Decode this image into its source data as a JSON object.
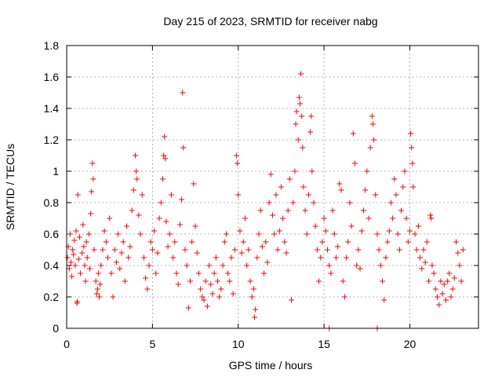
{
  "chart_data": {
    "type": "scatter",
    "title": "Day 215 of 2023, SRMTID for receiver nabg",
    "xlabel": "GPS time / hours",
    "ylabel": "SRMTID / TECUs",
    "xlim": [
      0,
      24
    ],
    "ylim": [
      0,
      1.8
    ],
    "x_ticks": [
      0,
      5,
      10,
      15,
      20
    ],
    "x_tick_labels": [
      "0",
      "5",
      "10",
      "15",
      "20"
    ],
    "y_ticks": [
      0,
      0.2,
      0.4,
      0.6,
      0.8,
      1,
      1.2,
      1.4,
      1.6,
      1.8
    ],
    "y_tick_labels": [
      "0",
      "0.2",
      "0.4",
      "0.6",
      "0.8",
      "1",
      "1.2",
      "1.4",
      "1.6",
      "1.8"
    ],
    "grid": true,
    "marker": "+",
    "series_color": "#ff0000",
    "series": [
      {
        "name": "SRMTID",
        "points": [
          [
            0.05,
            0.45
          ],
          [
            0.1,
            0.52
          ],
          [
            0.15,
            0.38
          ],
          [
            0.2,
            0.6
          ],
          [
            0.25,
            0.42
          ],
          [
            0.3,
            0.33
          ],
          [
            0.35,
            0.5
          ],
          [
            0.4,
            0.47
          ],
          [
            0.45,
            0.56
          ],
          [
            0.5,
            0.4
          ],
          [
            0.55,
            0.62
          ],
          [
            0.6,
            0.16
          ],
          [
            0.62,
            0.17
          ],
          [
            0.65,
            0.85
          ],
          [
            0.7,
            0.44
          ],
          [
            0.75,
            0.58
          ],
          [
            0.8,
            0.35
          ],
          [
            0.9,
            0.48
          ],
          [
            0.95,
            0.66
          ],
          [
            1.0,
            0.52
          ],
          [
            1.05,
            0.4
          ],
          [
            1.1,
            0.3
          ],
          [
            1.15,
            0.55
          ],
          [
            1.2,
            0.45
          ],
          [
            1.3,
            0.6
          ],
          [
            1.35,
            0.38
          ],
          [
            1.4,
            0.73
          ],
          [
            1.45,
            0.87
          ],
          [
            1.5,
            1.05
          ],
          [
            1.55,
            0.95
          ],
          [
            1.6,
            0.5
          ],
          [
            1.7,
            0.3
          ],
          [
            1.75,
            0.22
          ],
          [
            1.8,
            0.25
          ],
          [
            1.85,
            0.35
          ],
          [
            1.9,
            0.2
          ],
          [
            1.95,
            0.28
          ],
          [
            2.0,
            0.4
          ],
          [
            2.1,
            0.5
          ],
          [
            2.2,
            0.62
          ],
          [
            2.3,
            0.55
          ],
          [
            2.4,
            0.45
          ],
          [
            2.5,
            0.7
          ],
          [
            2.6,
            0.35
          ],
          [
            2.7,
            0.2
          ],
          [
            2.8,
            0.5
          ],
          [
            2.9,
            0.42
          ],
          [
            3.0,
            0.6
          ],
          [
            3.1,
            0.38
          ],
          [
            3.2,
            0.48
          ],
          [
            3.3,
            0.55
          ],
          [
            3.4,
            0.3
          ],
          [
            3.5,
            0.65
          ],
          [
            3.6,
            0.45
          ],
          [
            3.7,
            0.52
          ],
          [
            3.8,
            0.75
          ],
          [
            3.9,
            0.88
          ],
          [
            4.0,
            1.1
          ],
          [
            4.05,
            1.0
          ],
          [
            4.1,
            0.95
          ],
          [
            4.2,
            0.72
          ],
          [
            4.3,
            0.6
          ],
          [
            4.4,
            0.85
          ],
          [
            4.5,
            0.45
          ],
          [
            4.6,
            0.32
          ],
          [
            4.7,
            0.25
          ],
          [
            4.8,
            0.4
          ],
          [
            4.9,
            0.55
          ],
          [
            5.0,
            0.5
          ],
          [
            5.1,
            0.62
          ],
          [
            5.2,
            0.35
          ],
          [
            5.3,
            0.48
          ],
          [
            5.4,
            0.7
          ],
          [
            5.5,
            0.8
          ],
          [
            5.6,
            0.95
          ],
          [
            5.65,
            1.1
          ],
          [
            5.7,
            1.22
          ],
          [
            5.75,
            1.08
          ],
          [
            5.8,
            0.68
          ],
          [
            5.9,
            0.52
          ],
          [
            6.0,
            0.6
          ],
          [
            6.1,
            0.85
          ],
          [
            6.2,
            0.45
          ],
          [
            6.3,
            0.55
          ],
          [
            6.4,
            0.35
          ],
          [
            6.5,
            0.28
          ],
          [
            6.6,
            0.66
          ],
          [
            6.7,
            0.82
          ],
          [
            6.75,
            1.5
          ],
          [
            6.8,
            1.15
          ],
          [
            6.9,
            0.5
          ],
          [
            7.0,
            0.4
          ],
          [
            7.1,
            0.13
          ],
          [
            7.2,
            0.3
          ],
          [
            7.3,
            0.55
          ],
          [
            7.4,
            0.92
          ],
          [
            7.5,
            0.65
          ],
          [
            7.6,
            0.48
          ],
          [
            7.7,
            0.35
          ],
          [
            7.8,
            0.25
          ],
          [
            7.9,
            0.2
          ],
          [
            8.0,
            0.18
          ],
          [
            8.1,
            0.3
          ],
          [
            8.2,
            0.14
          ],
          [
            8.3,
            0.4
          ],
          [
            8.4,
            0.28
          ],
          [
            8.5,
            0.22
          ],
          [
            8.6,
            0.35
          ],
          [
            8.7,
            0.45
          ],
          [
            8.8,
            0.3
          ],
          [
            8.9,
            0.2
          ],
          [
            9.0,
            0.25
          ],
          [
            9.1,
            0.4
          ],
          [
            9.2,
            0.55
          ],
          [
            9.3,
            0.6
          ],
          [
            9.4,
            0.35
          ],
          [
            9.5,
            0.3
          ],
          [
            9.6,
            0.45
          ],
          [
            9.7,
            0.22
          ],
          [
            9.8,
            0.5
          ],
          [
            9.9,
            1.1
          ],
          [
            9.95,
            1.05
          ],
          [
            10.0,
            0.85
          ],
          [
            10.1,
            0.62
          ],
          [
            10.2,
            0.48
          ],
          [
            10.3,
            0.55
          ],
          [
            10.4,
            0.7
          ],
          [
            10.5,
            0.4
          ],
          [
            10.6,
            0.5
          ],
          [
            10.7,
            0.3
          ],
          [
            10.8,
            0.2
          ],
          [
            10.9,
            0.25
          ],
          [
            10.95,
            0.07
          ],
          [
            11.0,
            0.12
          ],
          [
            11.1,
            0.45
          ],
          [
            11.2,
            0.6
          ],
          [
            11.3,
            0.75
          ],
          [
            11.4,
            0.52
          ],
          [
            11.5,
            0.35
          ],
          [
            11.6,
            0.55
          ],
          [
            11.7,
            0.42
          ],
          [
            11.8,
            0.8
          ],
          [
            11.9,
            0.98
          ],
          [
            12.0,
            0.72
          ],
          [
            12.1,
            0.6
          ],
          [
            12.2,
            0.85
          ],
          [
            12.3,
            0.5
          ],
          [
            12.4,
            0.62
          ],
          [
            12.5,
            0.9
          ],
          [
            12.6,
            0.7
          ],
          [
            12.7,
            0.55
          ],
          [
            12.8,
            0.48
          ],
          [
            12.9,
            0.75
          ],
          [
            13.0,
            0.95
          ],
          [
            13.1,
            0.18
          ],
          [
            13.2,
            0.8
          ],
          [
            13.3,
            1.0
          ],
          [
            13.35,
            1.3
          ],
          [
            13.4,
            1.38
          ],
          [
            13.5,
            1.2
          ],
          [
            13.55,
            1.47
          ],
          [
            13.6,
            1.43
          ],
          [
            13.65,
            1.62
          ],
          [
            13.7,
            1.35
          ],
          [
            13.75,
            1.15
          ],
          [
            13.8,
            0.9
          ],
          [
            13.9,
            0.75
          ],
          [
            14.0,
            0.6
          ],
          [
            14.1,
            0.85
          ],
          [
            14.2,
            1.25
          ],
          [
            14.25,
            1.35
          ],
          [
            14.3,
            1.0
          ],
          [
            14.4,
            0.8
          ],
          [
            14.5,
            0.65
          ],
          [
            14.6,
            0.5
          ],
          [
            14.7,
            0.3
          ],
          [
            14.8,
            0.45
          ],
          [
            14.9,
            0.55
          ],
          [
            15.0,
            0.7
          ],
          [
            15.1,
            0.62
          ],
          [
            15.2,
            0.5
          ],
          [
            15.3,
            0.4
          ],
          [
            15.4,
            0.35
          ],
          [
            15.5,
            0.75
          ],
          [
            15.6,
            0.6
          ],
          [
            15.7,
            0.45
          ],
          [
            15.8,
            0.52
          ],
          [
            15.9,
            0.92
          ],
          [
            16.0,
            0.88
          ],
          [
            16.1,
            0.3
          ],
          [
            16.2,
            0.2
          ],
          [
            16.3,
            0.45
          ],
          [
            16.4,
            0.55
          ],
          [
            16.5,
            0.8
          ],
          [
            16.6,
            0.65
          ],
          [
            16.7,
            1.24
          ],
          [
            16.8,
            1.05
          ],
          [
            16.9,
            0.4
          ],
          [
            17.0,
            0.5
          ],
          [
            17.1,
            0.38
          ],
          [
            17.2,
            0.62
          ],
          [
            17.3,
            0.75
          ],
          [
            17.4,
            0.88
          ],
          [
            17.5,
            1.0
          ],
          [
            17.6,
            0.7
          ],
          [
            17.7,
            1.15
          ],
          [
            17.8,
            1.35
          ],
          [
            17.85,
            1.3
          ],
          [
            17.9,
            1.2
          ],
          [
            18.0,
            0.85
          ],
          [
            18.1,
            0.6
          ],
          [
            18.2,
            0.5
          ],
          [
            18.3,
            0.4
          ],
          [
            18.4,
            0.3
          ],
          [
            18.5,
            0.18
          ],
          [
            18.6,
            0.45
          ],
          [
            18.7,
            0.55
          ],
          [
            18.8,
            0.62
          ],
          [
            18.9,
            0.8
          ],
          [
            19.0,
            0.7
          ],
          [
            19.1,
            0.95
          ],
          [
            19.2,
            0.85
          ],
          [
            19.3,
            0.6
          ],
          [
            19.4,
            0.5
          ],
          [
            19.5,
            0.75
          ],
          [
            19.6,
            0.9
          ],
          [
            19.7,
            1.0
          ],
          [
            19.8,
            0.7
          ],
          [
            19.9,
            0.55
          ],
          [
            20.0,
            0.62
          ],
          [
            20.05,
            1.24
          ],
          [
            20.1,
            1.15
          ],
          [
            20.15,
            1.05
          ],
          [
            20.2,
            0.9
          ],
          [
            20.3,
            0.6
          ],
          [
            20.4,
            0.5
          ],
          [
            20.5,
            0.65
          ],
          [
            20.6,
            0.45
          ],
          [
            20.7,
            0.38
          ],
          [
            20.8,
            0.5
          ],
          [
            20.9,
            0.42
          ],
          [
            21.0,
            0.55
          ],
          [
            21.1,
            0.3
          ],
          [
            21.2,
            0.72
          ],
          [
            21.25,
            0.7
          ],
          [
            21.3,
            0.4
          ],
          [
            21.4,
            0.35
          ],
          [
            21.5,
            0.25
          ],
          [
            21.6,
            0.2
          ],
          [
            21.7,
            0.15
          ],
          [
            21.8,
            0.3
          ],
          [
            21.9,
            0.22
          ],
          [
            22.0,
            0.28
          ],
          [
            22.1,
            0.18
          ],
          [
            22.2,
            0.3
          ],
          [
            22.3,
            0.35
          ],
          [
            22.4,
            0.2
          ],
          [
            22.5,
            0.25
          ],
          [
            22.6,
            0.32
          ],
          [
            22.7,
            0.55
          ],
          [
            22.8,
            0.48
          ],
          [
            22.9,
            0.4
          ],
          [
            23.0,
            0.3
          ],
          [
            23.1,
            0.5
          ],
          [
            15.3,
            0.0
          ],
          [
            18.1,
            0.0
          ]
        ]
      }
    ]
  }
}
